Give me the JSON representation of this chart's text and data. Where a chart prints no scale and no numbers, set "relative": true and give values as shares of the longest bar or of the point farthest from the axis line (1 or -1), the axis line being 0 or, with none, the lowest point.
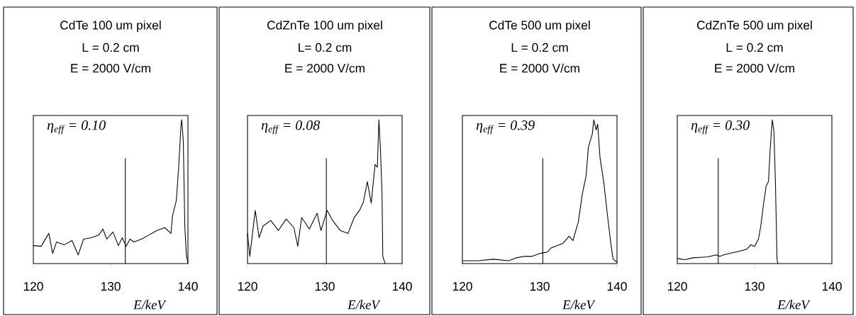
{
  "chart_data": [
    {
      "type": "line",
      "title": "CdTe 100 um pixel",
      "annotations": [
        "L = 0.2 cm",
        "E = 2000 V/cm",
        "η$_{eff}$ = 0.10"
      ],
      "xlabel": "E/keV",
      "relative": true,
      "xlim": [
        120,
        140
      ],
      "xticks": [
        120,
        130,
        140
      ],
      "color": "#000000",
      "ref_lines": [
        {
          "axis": "x",
          "value": 131.9
        }
      ],
      "x": [
        120,
        121,
        122,
        122.5,
        123,
        124,
        125,
        125.8,
        126.5,
        127.5,
        128.5,
        129,
        129.5,
        130.3,
        131,
        131.5,
        132,
        132.5,
        133,
        134,
        135,
        136,
        137,
        137.8,
        138,
        138.5,
        138.8,
        139.1,
        139.2,
        139.4,
        139.6,
        139.8,
        140
      ],
      "values": [
        0.125,
        0.12,
        0.21,
        0.07,
        0.15,
        0.13,
        0.16,
        0.06,
        0.17,
        0.18,
        0.2,
        0.24,
        0.17,
        0.22,
        0.125,
        0.18,
        0.12,
        0.17,
        0.15,
        0.17,
        0.2,
        0.23,
        0.25,
        0.21,
        0.33,
        0.44,
        0.67,
        0.96,
        1.0,
        0.85,
        0.25,
        0.06,
        0
      ]
    },
    {
      "type": "line",
      "title": "CdZnTe 100 um pixel",
      "annotations": [
        "L= 0.2 cm",
        "E = 2000 V/cm",
        "η$_{eff}$ = 0.08"
      ],
      "xlabel": "E/keV",
      "relative": true,
      "xlim": [
        120,
        140
      ],
      "xticks": [
        120,
        130,
        140
      ],
      "color": "#000000",
      "ref_lines": [
        {
          "axis": "x",
          "value": 130.2
        }
      ],
      "x": [
        120,
        120.3,
        121,
        121.5,
        122,
        123,
        124,
        125,
        126,
        126.5,
        127,
        128,
        129,
        129.5,
        130.3,
        131,
        132,
        133,
        133.8,
        134.5,
        135,
        135.5,
        136,
        136.5,
        136.8,
        137,
        137.2,
        137.4,
        137.5,
        137.8
      ],
      "values": [
        0.21,
        0.05,
        0.37,
        0.18,
        0.26,
        0.3,
        0.23,
        0.31,
        0.25,
        0.12,
        0.32,
        0.24,
        0.35,
        0.23,
        0.37,
        0.3,
        0.23,
        0.21,
        0.32,
        0.37,
        0.43,
        0.57,
        0.42,
        0.69,
        0.67,
        1.0,
        0.79,
        0.49,
        0.05,
        0
      ]
    },
    {
      "type": "line",
      "title": "CdTe 500 um pixel",
      "annotations": [
        "L = 0.2 cm",
        "E = 2000 V/cm",
        "η$_{eff}$ = 0.39"
      ],
      "xlabel": "E/keV",
      "relative": true,
      "xlim": [
        120,
        140
      ],
      "xticks": [
        120,
        130,
        140
      ],
      "color": "#000000",
      "ref_lines": [
        {
          "axis": "x",
          "value": 130.4
        }
      ],
      "x": [
        120,
        122,
        124,
        126,
        127,
        128,
        129,
        130,
        131,
        131.5,
        132,
        133,
        133.8,
        134.3,
        135,
        135.5,
        136,
        136.3,
        136.8,
        137,
        137.3,
        137.5,
        137.8,
        138.3,
        138.8,
        139.2,
        139.5,
        140
      ],
      "values": [
        0.02,
        0.02,
        0.03,
        0.02,
        0.04,
        0.05,
        0.05,
        0.07,
        0.08,
        0.11,
        0.12,
        0.14,
        0.19,
        0.16,
        0.29,
        0.48,
        0.61,
        0.81,
        0.9,
        1.0,
        0.93,
        0.97,
        0.74,
        0.56,
        0.32,
        0.14,
        0.03,
        0.01
      ]
    },
    {
      "type": "line",
      "title": "CdZnTe 500 um pixel",
      "annotations": [
        "L = 0.2 cm",
        "E = 2000 V/cm",
        "η$_{eff}$ = 0.30"
      ],
      "xlabel": "E/keV",
      "relative": true,
      "xlim": [
        120,
        140
      ],
      "xticks": [
        120,
        130,
        140
      ],
      "color": "#000000",
      "ref_lines": [
        {
          "axis": "x",
          "value": 125.3
        }
      ],
      "x": [
        120,
        121,
        122,
        123,
        124,
        125,
        125.5,
        126,
        127,
        128,
        129,
        129.5,
        130,
        130.5,
        130.8,
        131.2,
        131.5,
        131.8,
        132,
        132.2,
        132.3,
        132.5,
        132.7,
        132.9,
        133
      ],
      "values": [
        0.035,
        0.027,
        0.04,
        0.043,
        0.047,
        0.06,
        0.05,
        0.06,
        0.074,
        0.085,
        0.1,
        0.13,
        0.12,
        0.17,
        0.26,
        0.43,
        0.54,
        0.57,
        0.78,
        0.94,
        1.0,
        0.92,
        0.56,
        0.035,
        0
      ]
    }
  ]
}
